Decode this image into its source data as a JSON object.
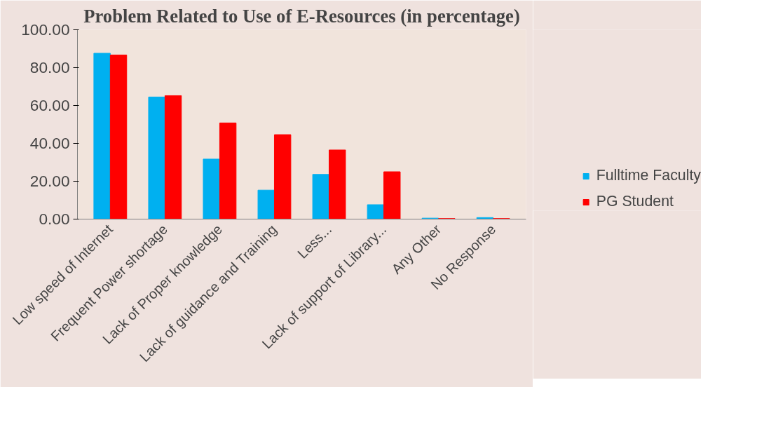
{
  "chart_data": {
    "type": "bar",
    "title": "Problem Related to Use of E-Resources (in percentage)",
    "categories": [
      "Low speed of Internet",
      "Frequent Power shortage",
      "Lack of Proper knowledge",
      "Lack of guidance and Training",
      "Less...",
      "Lack of support of Library...",
      "Any Other",
      "No Response"
    ],
    "series": [
      {
        "name": "Fulltime Faculty",
        "color": "#00b0f0",
        "values": [
          87.6,
          64.5,
          31.7,
          15.3,
          23.6,
          7.6,
          0.5,
          0.8
        ]
      },
      {
        "name": "PG Student",
        "color": "#ff0000",
        "values": [
          86.7,
          65.2,
          50.8,
          44.6,
          36.5,
          25.0,
          0.3,
          0.3
        ]
      }
    ],
    "ylim": [
      0,
      100
    ],
    "yticks": [
      {
        "value": 0,
        "label": "0.00"
      },
      {
        "value": 20,
        "label": "20.00"
      },
      {
        "value": 40,
        "label": "40.00"
      },
      {
        "value": 60,
        "label": "60.00"
      },
      {
        "value": 80,
        "label": "80.00"
      },
      {
        "value": 100,
        "label": "100.00"
      }
    ],
    "grid": false,
    "legend": "bottom right"
  }
}
